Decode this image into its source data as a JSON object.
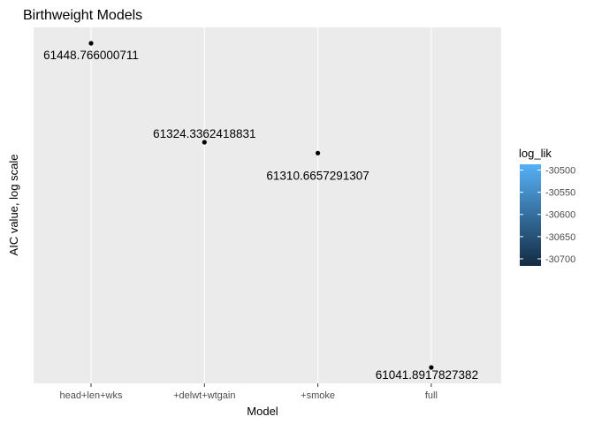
{
  "chart_data": {
    "type": "scatter",
    "title": "Birthweight Models",
    "xlabel": "Model",
    "ylabel": "AIC value, log scale",
    "y_scale": "log",
    "y_axis_ticks_shown": false,
    "categories": [
      "head+len+wks",
      "+delwt+wtgain",
      "+smoke",
      "full"
    ],
    "values": [
      61448.766000711,
      61324.3362418831,
      61310.6657291307,
      61041.8917827382
    ],
    "data_labels": [
      "61448.766000711",
      "61324.3362418831",
      "61310.6657291307",
      "61041.8917827382"
    ],
    "point_color": "#000000",
    "grid": true,
    "panel_background": "#ebebeb",
    "gridline_color": "#ffffff",
    "legend": {
      "title": "log_lik",
      "placement": "right",
      "type": "colorbar",
      "ticks": [
        -30500,
        -30550,
        -30600,
        -30650,
        -30700
      ],
      "tick_labels": [
        "-30500",
        "-30550",
        "-30600",
        "-30650",
        "-30700"
      ],
      "range": [
        -30716,
        -30487
      ],
      "color_low": "#132B43",
      "color_high": "#56B1F7"
    }
  }
}
